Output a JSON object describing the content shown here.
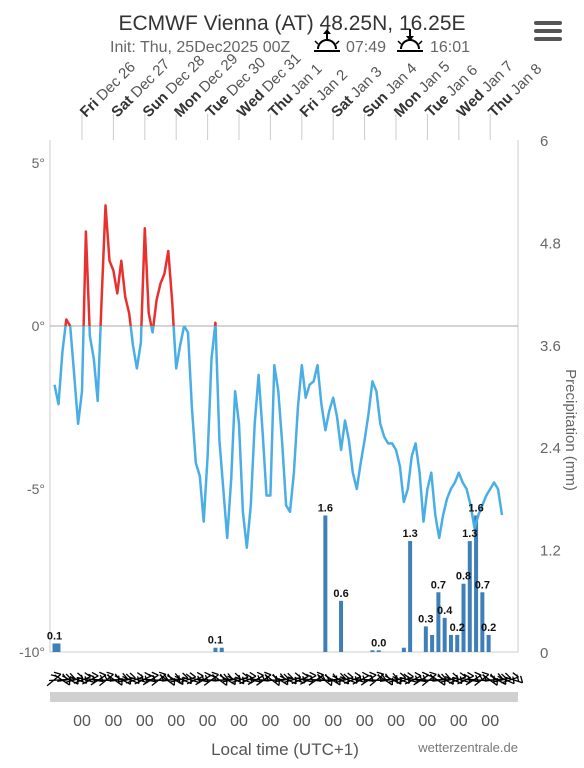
{
  "header": {
    "title": "ECMWF Vienna (AT) 48.25N, 16.25E",
    "init_label": "Init: Thu, 25Dec2025 00Z",
    "sunrise_time": "07:49",
    "sunset_time": "16:01",
    "sunrise_icon": "sunrise-icon",
    "sunset_icon": "sunset-icon",
    "menu_icon": "hamburger-menu-icon"
  },
  "footer": {
    "xlabel": "Local time (UTC+1)",
    "credit": "wetterzentrale.de"
  },
  "chart_data": {
    "type": "line",
    "x_unit": "days from Fri Dec 26 00:00 local",
    "day_labels": [
      {
        "dow": "Fri",
        "date": "Dec 26"
      },
      {
        "dow": "Sat",
        "date": "Dec 27"
      },
      {
        "dow": "Sun",
        "date": "Dec 28"
      },
      {
        "dow": "Mon",
        "date": "Dec 29"
      },
      {
        "dow": "Tue",
        "date": "Dec 30"
      },
      {
        "dow": "Wed",
        "date": "Dec 31"
      },
      {
        "dow": "Thu",
        "date": "Jan 1"
      },
      {
        "dow": "Fri",
        "date": "Jan 2"
      },
      {
        "dow": "Sat",
        "date": "Jan 3"
      },
      {
        "dow": "Sun",
        "date": "Jan 4"
      },
      {
        "dow": "Mon",
        "date": "Jan 5"
      },
      {
        "dow": "Tue",
        "date": "Jan 6"
      },
      {
        "dow": "Wed",
        "date": "Jan 7"
      },
      {
        "dow": "Thu",
        "date": "Jan 8"
      }
    ],
    "x_tick_labels": [
      "00",
      "00",
      "00",
      "00",
      "00",
      "00",
      "00",
      "00",
      "00",
      "00",
      "00",
      "00",
      "00",
      "00"
    ],
    "y_left": {
      "ticks": [
        5,
        0,
        -5,
        -10
      ],
      "tick_labels": [
        "5°",
        "0°",
        "-5°",
        "-10°"
      ],
      "range": [
        -10,
        5
      ]
    },
    "y_right": {
      "label": "Precipitation (mm)",
      "ticks": [
        6,
        4.8,
        3.6,
        2.4,
        1.2,
        0
      ],
      "tick_labels": [
        "6",
        "4.8",
        "3.6",
        "2.4",
        "1.2",
        "0"
      ],
      "range": [
        0,
        6
      ]
    },
    "colors": {
      "above_zero": "#e8312f",
      "below_zero": "#4aaee6",
      "precip_bar": "#3f7fb8",
      "grid": "#cccccc",
      "zero_line": "#aaaaaa",
      "wind_barb": "#000000"
    },
    "temperature": {
      "name": "Temperature",
      "x": [
        -0.875,
        -0.75,
        -0.625,
        -0.5,
        -0.375,
        -0.25,
        -0.125,
        0.0,
        0.125,
        0.25,
        0.375,
        0.5,
        0.625,
        0.75,
        0.875,
        1.0,
        1.125,
        1.25,
        1.375,
        1.5,
        1.625,
        1.75,
        1.875,
        2.0,
        2.125,
        2.25,
        2.375,
        2.5,
        2.625,
        2.75,
        2.875,
        3.0,
        3.125,
        3.25,
        3.375,
        3.5,
        3.625,
        3.75,
        3.875,
        4.0,
        4.125,
        4.25,
        4.375,
        4.5,
        4.625,
        4.75,
        4.875,
        5.0,
        5.125,
        5.25,
        5.375,
        5.5,
        5.625,
        5.75,
        5.875,
        6.0,
        6.125,
        6.25,
        6.375,
        6.5,
        6.625,
        6.75,
        6.875,
        7.0,
        7.125,
        7.25,
        7.375,
        7.5,
        7.625,
        7.75,
        7.875,
        8.0,
        8.125,
        8.25,
        8.375,
        8.5,
        8.625,
        8.75,
        8.875,
        9.0,
        9.125,
        9.25,
        9.375,
        9.5,
        9.625,
        9.75,
        9.875,
        10.0,
        10.125,
        10.25,
        10.375,
        10.5,
        10.625,
        10.75,
        10.875,
        11.0,
        11.125,
        11.25,
        11.375,
        11.5,
        11.625,
        11.75,
        11.875,
        12.0,
        12.125,
        12.25,
        12.375,
        12.5,
        12.625,
        12.75,
        12.875,
        13.0,
        13.125,
        13.25,
        13.375
      ],
      "y": [
        -1.8,
        -2.4,
        -0.8,
        0.2,
        0.0,
        -1.5,
        -3.0,
        -2.0,
        2.9,
        -0.3,
        -1.0,
        -2.3,
        0.8,
        3.7,
        2.0,
        1.7,
        1.0,
        2.0,
        0.9,
        0.4,
        -0.6,
        -1.3,
        -0.5,
        3.0,
        0.4,
        -0.2,
        0.8,
        1.3,
        1.6,
        2.3,
        0.7,
        -1.3,
        -0.6,
        0.0,
        -0.2,
        -2.5,
        -4.2,
        -4.6,
        -6.0,
        -4.0,
        -1.0,
        0.1,
        -3.5,
        -5.0,
        -6.5,
        -4.7,
        -2.0,
        -3.0,
        -5.7,
        -6.8,
        -5.5,
        -3.0,
        -1.5,
        -3.2,
        -5.2,
        -5.2,
        -1.2,
        -2.0,
        -3.6,
        -5.5,
        -5.7,
        -4.5,
        -2.5,
        -1.2,
        -2.2,
        -1.8,
        -1.7,
        -1.2,
        -2.4,
        -3.2,
        -2.6,
        -2.2,
        -2.8,
        -3.8,
        -2.9,
        -3.5,
        -4.5,
        -5.0,
        -4.2,
        -3.5,
        -2.7,
        -1.7,
        -2.0,
        -3.0,
        -3.4,
        -3.6,
        -3.6,
        -3.8,
        -4.3,
        -5.4,
        -5.0,
        -4.0,
        -3.6,
        -4.5,
        -6.0,
        -5.0,
        -4.5,
        -5.8,
        -6.5,
        -5.8,
        -5.3,
        -5.0,
        -4.8,
        -4.5,
        -4.8,
        -5.0,
        -5.5,
        -6.2,
        -5.8,
        -5.5,
        -5.2,
        -5.0,
        -4.8,
        -5.0,
        -5.8
      ]
    },
    "precipitation": {
      "name": "Precipitation",
      "x": [
        -0.875,
        -0.75,
        4.25,
        4.45,
        7.75,
        8.25,
        9.25,
        9.45,
        10.25,
        10.45,
        10.95,
        11.15,
        11.35,
        11.55,
        11.75,
        11.95,
        12.15,
        12.35,
        12.55,
        12.75,
        12.95
      ],
      "values": [
        0.1,
        0.1,
        0.05,
        0.05,
        1.6,
        0.6,
        0.0,
        0.02,
        0.05,
        1.3,
        0.3,
        0.2,
        0.7,
        0.4,
        0.2,
        0.2,
        0.8,
        1.3,
        1.6,
        0.7,
        0.2
      ]
    },
    "data_labels": [
      {
        "x": -0.875,
        "value": 0.1,
        "text": "0.1"
      },
      {
        "x": 4.25,
        "value": 0.05,
        "text": "0.1"
      },
      {
        "x": 7.75,
        "value": 1.6,
        "text": "1.6"
      },
      {
        "x": 8.25,
        "value": 0.6,
        "text": "0.6"
      },
      {
        "x": 9.45,
        "value": 0.02,
        "text": "0.0"
      },
      {
        "x": 10.45,
        "value": 1.3,
        "text": "1.3"
      },
      {
        "x": 10.95,
        "value": 0.3,
        "text": "0.3"
      },
      {
        "x": 11.35,
        "value": 0.7,
        "text": "0.7"
      },
      {
        "x": 11.55,
        "value": 0.4,
        "text": "0.4"
      },
      {
        "x": 11.95,
        "value": 0.2,
        "text": "0.2"
      },
      {
        "x": 12.15,
        "value": 0.8,
        "text": "0.8"
      },
      {
        "x": 12.35,
        "value": 1.3,
        "text": "1.3"
      },
      {
        "x": 12.55,
        "value": 1.6,
        "text": "1.6"
      },
      {
        "x": 12.75,
        "value": 0.7,
        "text": "0.7"
      },
      {
        "x": 12.95,
        "value": 0.2,
        "text": "0.2"
      }
    ],
    "wind_barbs": {
      "count": 115,
      "style": "barbs along bottom"
    }
  }
}
